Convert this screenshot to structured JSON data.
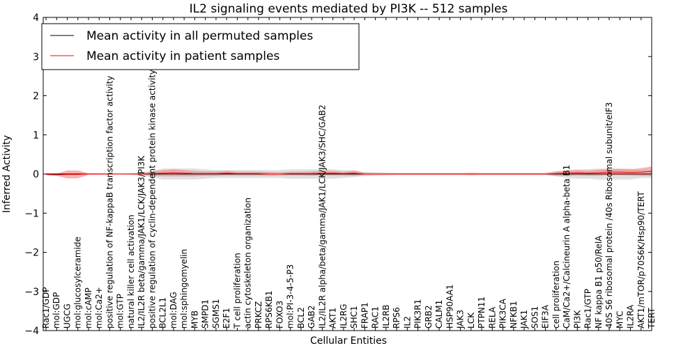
{
  "chart_data": {
    "type": "line",
    "title": "IL2 signaling events mediated by PI3K -- 512 samples",
    "xlabel": "Cellular Entities",
    "ylabel": "Inferred Activity",
    "ylim": [
      -4,
      4
    ],
    "yticks": [
      -4,
      -3,
      -2,
      -1,
      0,
      1,
      2,
      3,
      4
    ],
    "ytick_labels": [
      "−4",
      "−3",
      "−2",
      "−1",
      "0",
      "1",
      "2",
      "3",
      "4"
    ],
    "legend": {
      "position": "top-left",
      "entries": [
        {
          "label": "Mean activity in all permuted samples",
          "color": "#000000"
        },
        {
          "label": "Mean activity in patient samples",
          "color": "#ff0000"
        }
      ]
    },
    "categories": [
      "Rac1/GDP",
      "mol:GDP",
      "UGCG",
      "mol:glucosylceramide",
      "mol:cAMP",
      "mol:Ca2+",
      "positive regulation of NF-kappaB transcription factor activity",
      "mol:GTP",
      "natural killer cell activation",
      "IL2/IL2R beta/gamma/JAK1/LCK/JAK3/PI3K",
      "positive regulation of cyclin-dependent protein kinase activity",
      "BCL2L1",
      "mol:DAG",
      "mol:sphingomyelin",
      "MYB",
      "SMPD1",
      "SGMS1",
      "E2F1",
      "T cell proliferation",
      "actin cytoskeleton organization",
      "PRKCZ",
      "RPS6KB1",
      "FOXO3",
      "mol:PI-3-4-5-P3",
      "BCL2",
      "GAB2",
      "IL2/IL2R alpha/beta/gamma/JAK1/LCK/JAK3/SHC/GAB2",
      "AKT1",
      "IL2RG",
      "SHC1",
      "FRAP1",
      "RAC1",
      "IL2RB",
      "RPS6",
      "IL2",
      "PIK3R1",
      "GRB2",
      "CALM1",
      "HSP90AA1",
      "JAK3",
      "LCK",
      "PTPN11",
      "RELA",
      "PIK3CA",
      "NFKB1",
      "JAK1",
      "SOS1",
      "EIF3A",
      "cell proliferation",
      "CaM/Ca2+/Calcineurin A alpha-beta B1",
      "PI3K",
      "Rac1/GTP",
      "NF kappa B1 p50/RelA",
      "40S S6 ribosomal protein /40s Ribosomal subunit/eIF3",
      "MYC",
      "IL2RA",
      "AKT1/mTOR/p70S6K/Hsp90/TERT",
      "TERT"
    ],
    "series": [
      {
        "name": "Mean activity in all permuted samples",
        "color": "#000000",
        "values": [
          0,
          0,
          0,
          0,
          0,
          0,
          0,
          0,
          0,
          0,
          0,
          0,
          0,
          0,
          0,
          0,
          0,
          0,
          0,
          0,
          0,
          0,
          0,
          0,
          0,
          0,
          0,
          0,
          0,
          0,
          0,
          0,
          0,
          0,
          0,
          0,
          0,
          0,
          0,
          0,
          0,
          0,
          0,
          0,
          0,
          0,
          0,
          0,
          0,
          0,
          0,
          0,
          0,
          0,
          0,
          0,
          0,
          0
        ],
        "band": [
          0.02,
          0.02,
          0.02,
          0.02,
          0.02,
          0.02,
          0.02,
          0.02,
          0.03,
          0.05,
          0.08,
          0.14,
          0.14,
          0.14,
          0.14,
          0.12,
          0.1,
          0.1,
          0.1,
          0.1,
          0.1,
          0.1,
          0.1,
          0.12,
          0.12,
          0.12,
          0.12,
          0.12,
          0.1,
          0.08,
          0.05,
          0.05,
          0.04,
          0.03,
          0.03,
          0.03,
          0.03,
          0.03,
          0.03,
          0.03,
          0.03,
          0.03,
          0.03,
          0.03,
          0.03,
          0.03,
          0.03,
          0.03,
          0.06,
          0.1,
          0.12,
          0.12,
          0.14,
          0.14,
          0.14,
          0.14,
          0.1,
          0.1
        ]
      },
      {
        "name": "Mean activity in patient samples",
        "color": "#ff0000",
        "values": [
          -0.01,
          -0.02,
          -0.01,
          -0.01,
          0,
          0,
          0,
          0,
          0,
          0,
          0.01,
          0.02,
          0.03,
          0.02,
          0.01,
          0.01,
          0.01,
          0.02,
          0.01,
          0.01,
          0.01,
          0,
          0,
          0.01,
          0.01,
          0.01,
          0.02,
          0.02,
          0.01,
          0.02,
          0,
          0,
          0,
          0,
          0,
          0,
          0,
          0,
          0,
          0,
          0,
          0,
          0,
          0,
          0,
          0,
          0,
          0,
          0.01,
          0.02,
          0.03,
          0.02,
          0.03,
          0.05,
          0.05,
          0.04,
          0.05,
          0.07
        ],
        "band": [
          0.02,
          0.03,
          0.1,
          0.1,
          0.02,
          0.02,
          0.01,
          0.01,
          0.01,
          0.02,
          0.06,
          0.08,
          0.09,
          0.08,
          0.07,
          0.06,
          0.06,
          0.06,
          0.05,
          0.05,
          0.05,
          0.05,
          0.04,
          0.05,
          0.05,
          0.06,
          0.06,
          0.06,
          0.05,
          0.07,
          0.03,
          0.02,
          0.02,
          0.02,
          0.02,
          0.02,
          0.02,
          0.02,
          0.02,
          0.02,
          0.03,
          0.02,
          0.02,
          0.02,
          0.02,
          0.02,
          0.02,
          0.02,
          0.06,
          0.07,
          0.07,
          0.07,
          0.08,
          0.08,
          0.08,
          0.08,
          0.1,
          0.12
        ]
      }
    ]
  }
}
